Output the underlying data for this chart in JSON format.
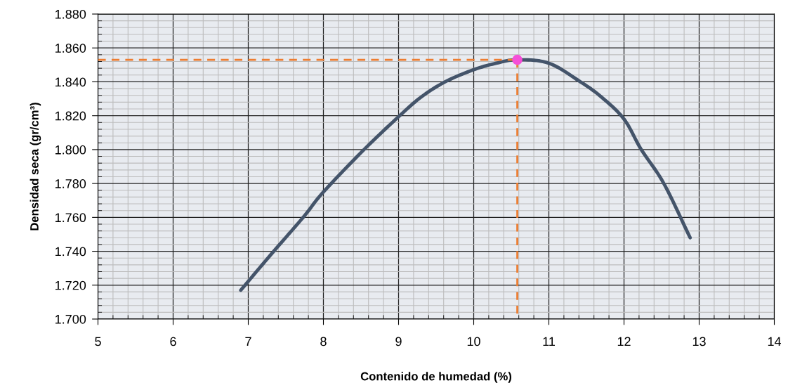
{
  "chart_data": {
    "type": "line",
    "xlabel": "Contenido de humedad (%)",
    "ylabel": "Densidad seca (gr/cm³)",
    "series": [
      {
        "color": "#44546a",
        "x": [
          6.9,
          7.3,
          7.73,
          8.0,
          8.54,
          8.99,
          9.3,
          9.62,
          9.99,
          10.3,
          10.58,
          11.0,
          11.42,
          11.7,
          12.0,
          12.23,
          12.53,
          12.88
        ],
        "values": [
          1.717,
          1.738,
          1.76,
          1.775,
          1.8,
          1.819,
          1.831,
          1.84,
          1.847,
          1.851,
          1.853,
          1.851,
          1.84,
          1.831,
          1.818,
          1.8,
          1.78,
          1.748
        ]
      },
      {
        "color": "#ed7d31",
        "line_style": "dashed",
        "x": [
          5,
          10.58
        ],
        "values": [
          1.853,
          1.853
        ]
      },
      {
        "color": "#ed7d31",
        "line_style": "dashed",
        "x": [
          10.58,
          10.58
        ],
        "values": [
          1.853,
          1.7
        ]
      },
      {
        "type": "scatter",
        "color": "#f54fd8",
        "marker": "circle",
        "x": [
          10.58
        ],
        "values": [
          1.853
        ]
      }
    ],
    "xlim": [
      5,
      14
    ],
    "xticks": [
      5,
      6,
      7,
      8,
      9,
      10,
      11,
      12,
      13,
      14
    ],
    "ylim": [
      1.7,
      1.88
    ],
    "yticks": [
      {
        "value": 1.7,
        "label": "1.700"
      },
      {
        "value": 1.72,
        "label": "1.720"
      },
      {
        "value": 1.74,
        "label": "1.740"
      },
      {
        "value": 1.76,
        "label": "1.760"
      },
      {
        "value": 1.78,
        "label": "1.780"
      },
      {
        "value": 1.8,
        "label": "1.800"
      },
      {
        "value": 1.82,
        "label": "1.820"
      },
      {
        "value": 1.84,
        "label": "1.840"
      },
      {
        "value": 1.86,
        "label": "1.860"
      },
      {
        "value": 1.88,
        "label": "1.880"
      }
    ],
    "grid": true
  }
}
